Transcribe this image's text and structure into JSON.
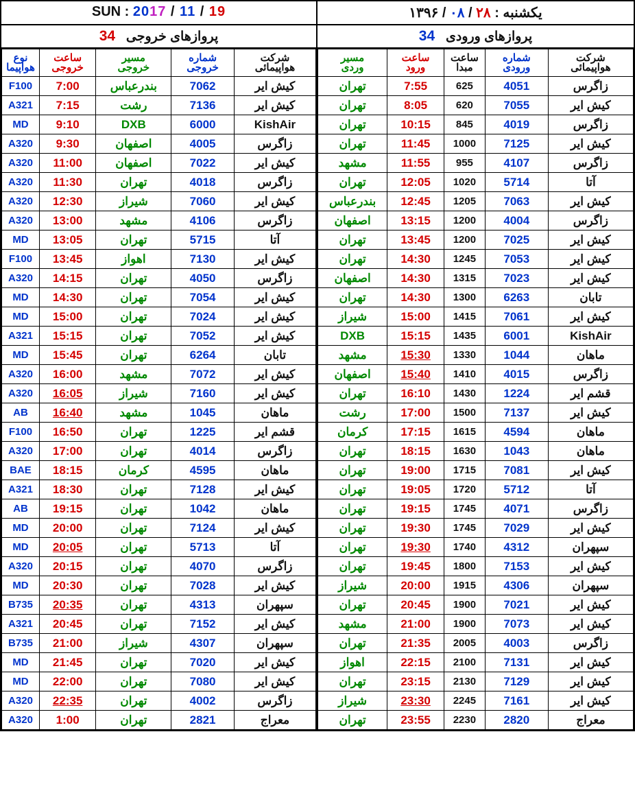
{
  "header": {
    "sun_label": "SUN :",
    "date_year": "20",
    "date_year2": "17",
    "date_sep": " / ",
    "date_month": "11",
    "date_day": "19",
    "persian_label": "یکشنبه :",
    "persian_day": "۲۸",
    "persian_sep": " / ",
    "persian_month": "۰۸",
    "persian_year": "۱۳۹۶"
  },
  "section": {
    "departures_label": "پروازهای خروجی",
    "arrivals_label": "پروازهای ورودی",
    "count": "34"
  },
  "dep_headers": {
    "type": [
      "نوع",
      "هواپیما"
    ],
    "time": [
      "ساعت",
      "خروجی"
    ],
    "dest": [
      "مسیر",
      "خروجی"
    ],
    "num": [
      "شماره",
      "خروجی"
    ],
    "airline": [
      "شرکت",
      "هواپیمائی"
    ]
  },
  "arr_headers": {
    "origin": [
      "مسیر",
      "وردی"
    ],
    "arrtime": [
      "ساعت",
      "ورود"
    ],
    "otime": [
      "ساعت",
      "مبدا"
    ],
    "num": [
      "شماره",
      "ورودی"
    ],
    "airline": [
      "شرکت",
      "هواپیمائی"
    ]
  },
  "departures": [
    {
      "type": "F100",
      "time": "7:00",
      "dest": "بندرعباس",
      "num": "7062",
      "airline": "کیش ایر",
      "latin_dest": false,
      "latin_airline": false
    },
    {
      "type": "A321",
      "time": "7:15",
      "dest": "رشت",
      "num": "7136",
      "airline": "کیش ایر"
    },
    {
      "type": "MD",
      "time": "9:10",
      "dest": "DXB",
      "num": "6000",
      "airline": "KishAir",
      "latin_dest": true,
      "latin_airline": true
    },
    {
      "type": "A320",
      "time": "9:30",
      "dest": "اصفهان",
      "num": "4005",
      "airline": "زاگرس"
    },
    {
      "type": "A320",
      "time": "11:00",
      "dest": "اصفهان",
      "num": "7022",
      "airline": "کیش ایر"
    },
    {
      "type": "A320",
      "time": "11:30",
      "dest": "تهران",
      "num": "4018",
      "airline": "زاگرس"
    },
    {
      "type": "A320",
      "time": "12:30",
      "dest": "شیراز",
      "num": "7060",
      "airline": "کیش ایر"
    },
    {
      "type": "A320",
      "time": "13:00",
      "dest": "مشهد",
      "num": "4106",
      "airline": "زاگرس"
    },
    {
      "type": "MD",
      "time": "13:05",
      "dest": "تهران",
      "num": "5715",
      "airline": "آتا"
    },
    {
      "type": "F100",
      "time": "13:45",
      "dest": "اهواز",
      "num": "7130",
      "airline": "کیش ایر"
    },
    {
      "type": "A320",
      "time": "14:15",
      "dest": "تهران",
      "num": "4050",
      "airline": "زاگرس"
    },
    {
      "type": "MD",
      "time": "14:30",
      "dest": "تهران",
      "num": "7054",
      "airline": "کیش ایر"
    },
    {
      "type": "MD",
      "time": "15:00",
      "dest": "تهران",
      "num": "7024",
      "airline": "کیش ایر"
    },
    {
      "type": "A321",
      "time": "15:15",
      "dest": "تهران",
      "num": "7052",
      "airline": "کیش ایر"
    },
    {
      "type": "MD",
      "time": "15:45",
      "dest": "تهران",
      "num": "6264",
      "airline": "تابان"
    },
    {
      "type": "A320",
      "time": "16:00",
      "dest": "مشهد",
      "num": "7072",
      "airline": "کیش ایر"
    },
    {
      "type": "A320",
      "time": "16:05",
      "dest": "شیراز",
      "num": "7160",
      "airline": "کیش ایر",
      "ul": true
    },
    {
      "type": "AB",
      "time": "16:40",
      "dest": "مشهد",
      "num": "1045",
      "airline": "ماهان",
      "ul": true
    },
    {
      "type": "F100",
      "time": "16:50",
      "dest": "تهران",
      "num": "1225",
      "airline": "قشم ایر"
    },
    {
      "type": "A320",
      "time": "17:00",
      "dest": "تهران",
      "num": "4014",
      "airline": "زاگرس"
    },
    {
      "type": "BAE",
      "time": "18:15",
      "dest": "کرمان",
      "num": "4595",
      "airline": "ماهان"
    },
    {
      "type": "A321",
      "time": "18:30",
      "dest": "تهران",
      "num": "7128",
      "airline": "کیش ایر"
    },
    {
      "type": "AB",
      "time": "19:15",
      "dest": "تهران",
      "num": "1042",
      "airline": "ماهان"
    },
    {
      "type": "MD",
      "time": "20:00",
      "dest": "تهران",
      "num": "7124",
      "airline": "کیش ایر"
    },
    {
      "type": "MD",
      "time": "20:05",
      "dest": "تهران",
      "num": "5713",
      "airline": "آتا",
      "ul": true
    },
    {
      "type": "A320",
      "time": "20:15",
      "dest": "تهران",
      "num": "4070",
      "airline": "زاگرس"
    },
    {
      "type": "MD",
      "time": "20:30",
      "dest": "تهران",
      "num": "7028",
      "airline": "کیش ایر"
    },
    {
      "type": "B735",
      "time": "20:35",
      "dest": "تهران",
      "num": "4313",
      "airline": "سپهران",
      "ul": true
    },
    {
      "type": "A321",
      "time": "20:45",
      "dest": "تهران",
      "num": "7152",
      "airline": "کیش ایر"
    },
    {
      "type": "B735",
      "time": "21:00",
      "dest": "شیراز",
      "num": "4307",
      "airline": "سپهران"
    },
    {
      "type": "MD",
      "time": "21:45",
      "dest": "تهران",
      "num": "7020",
      "airline": "کیش ایر"
    },
    {
      "type": "MD",
      "time": "22:00",
      "dest": "تهران",
      "num": "7080",
      "airline": "کیش ایر"
    },
    {
      "type": "A320",
      "time": "22:35",
      "dest": "تهران",
      "num": "4002",
      "airline": "زاگرس",
      "ul": true
    },
    {
      "type": "A320",
      "time": "1:00",
      "dest": "تهران",
      "num": "2821",
      "airline": "معراج"
    }
  ],
  "arrivals": [
    {
      "origin": "تهران",
      "arrtime": "7:55",
      "otime": "625",
      "num": "4051",
      "airline": "زاگرس"
    },
    {
      "origin": "تهران",
      "arrtime": "8:05",
      "otime": "620",
      "num": "7055",
      "airline": "کیش ایر"
    },
    {
      "origin": "تهران",
      "arrtime": "10:15",
      "otime": "845",
      "num": "4019",
      "airline": "زاگرس"
    },
    {
      "origin": "تهران",
      "arrtime": "11:45",
      "otime": "1000",
      "num": "7125",
      "airline": "کیش ایر"
    },
    {
      "origin": "مشهد",
      "arrtime": "11:55",
      "otime": "955",
      "num": "4107",
      "airline": "زاگرس"
    },
    {
      "origin": "تهران",
      "arrtime": "12:05",
      "otime": "1020",
      "num": "5714",
      "airline": "آتا"
    },
    {
      "origin": "بندرعباس",
      "arrtime": "12:45",
      "otime": "1205",
      "num": "7063",
      "airline": "کیش ایر"
    },
    {
      "origin": "اصفهان",
      "arrtime": "13:15",
      "otime": "1200",
      "num": "4004",
      "airline": "زاگرس"
    },
    {
      "origin": "تهران",
      "arrtime": "13:45",
      "otime": "1200",
      "num": "7025",
      "airline": "کیش ایر"
    },
    {
      "origin": "تهران",
      "arrtime": "14:30",
      "otime": "1245",
      "num": "7053",
      "airline": "کیش ایر"
    },
    {
      "origin": "اصفهان",
      "arrtime": "14:30",
      "otime": "1315",
      "num": "7023",
      "airline": "کیش ایر"
    },
    {
      "origin": "تهران",
      "arrtime": "14:30",
      "otime": "1300",
      "num": "6263",
      "airline": "تابان"
    },
    {
      "origin": "شیراز",
      "arrtime": "15:00",
      "otime": "1415",
      "num": "7061",
      "airline": "کیش ایر"
    },
    {
      "origin": "DXB",
      "arrtime": "15:15",
      "otime": "1435",
      "num": "6001",
      "airline": "KishAir",
      "latin_origin": true,
      "latin_airline": true
    },
    {
      "origin": "مشهد",
      "arrtime": "15:30",
      "otime": "1330",
      "num": "1044",
      "airline": "ماهان",
      "ul": true
    },
    {
      "origin": "اصفهان",
      "arrtime": "15:40",
      "otime": "1410",
      "num": "4015",
      "airline": "زاگرس",
      "ul": true
    },
    {
      "origin": "تهران",
      "arrtime": "16:10",
      "otime": "1430",
      "num": "1224",
      "airline": "قشم ایر"
    },
    {
      "origin": "رشت",
      "arrtime": "17:00",
      "otime": "1500",
      "num": "7137",
      "airline": "کیش ایر"
    },
    {
      "origin": "کرمان",
      "arrtime": "17:15",
      "otime": "1615",
      "num": "4594",
      "airline": "ماهان"
    },
    {
      "origin": "تهران",
      "arrtime": "18:15",
      "otime": "1630",
      "num": "1043",
      "airline": "ماهان"
    },
    {
      "origin": "تهران",
      "arrtime": "19:00",
      "otime": "1715",
      "num": "7081",
      "airline": "کیش ایر"
    },
    {
      "origin": "تهران",
      "arrtime": "19:05",
      "otime": "1720",
      "num": "5712",
      "airline": "آتا"
    },
    {
      "origin": "تهران",
      "arrtime": "19:15",
      "otime": "1745",
      "num": "4071",
      "airline": "زاگرس"
    },
    {
      "origin": "تهران",
      "arrtime": "19:30",
      "otime": "1745",
      "num": "7029",
      "airline": "کیش ایر"
    },
    {
      "origin": "تهران",
      "arrtime": "19:30",
      "otime": "1740",
      "num": "4312",
      "airline": "سپهران",
      "ul": true
    },
    {
      "origin": "تهران",
      "arrtime": "19:45",
      "otime": "1800",
      "num": "7153",
      "airline": "کیش ایر"
    },
    {
      "origin": "شیراز",
      "arrtime": "20:00",
      "otime": "1915",
      "num": "4306",
      "airline": "سپهران"
    },
    {
      "origin": "تهران",
      "arrtime": "20:45",
      "otime": "1900",
      "num": "7021",
      "airline": "کیش ایر"
    },
    {
      "origin": "مشهد",
      "arrtime": "21:00",
      "otime": "1900",
      "num": "7073",
      "airline": "کیش ایر"
    },
    {
      "origin": "تهران",
      "arrtime": "21:35",
      "otime": "2005",
      "num": "4003",
      "airline": "زاگرس"
    },
    {
      "origin": "اهواز",
      "arrtime": "22:15",
      "otime": "2100",
      "num": "7131",
      "airline": "کیش ایر"
    },
    {
      "origin": "تهران",
      "arrtime": "23:15",
      "otime": "2130",
      "num": "7129",
      "airline": "کیش ایر"
    },
    {
      "origin": "شیراز",
      "arrtime": "23:30",
      "otime": "2245",
      "num": "7161",
      "airline": "کیش ایر",
      "ul": true
    },
    {
      "origin": "تهران",
      "arrtime": "23:55",
      "otime": "2230",
      "num": "2820",
      "airline": "معراج"
    }
  ]
}
